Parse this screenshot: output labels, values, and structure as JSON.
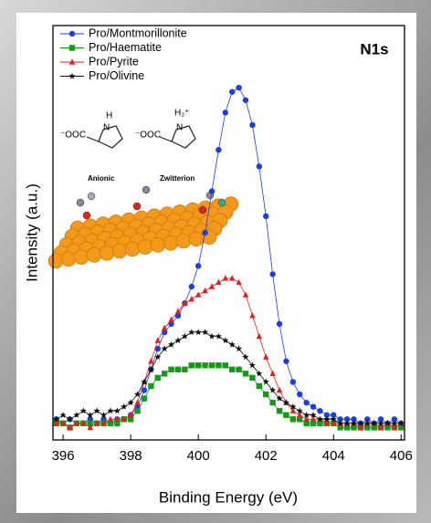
{
  "chart_data": {
    "type": "line",
    "annotation": "N1s",
    "x_label": "Binding Energy (eV)",
    "y_label": "Intensity (a.u.)",
    "xlim": [
      395.7,
      406.1
    ],
    "ylim": [
      0,
      100
    ],
    "xticks": [
      396,
      398,
      400,
      402,
      404,
      406
    ],
    "legend": "top-left",
    "x": [
      395.8,
      396.0,
      396.2,
      396.4,
      396.6,
      396.8,
      397.0,
      397.2,
      397.4,
      397.6,
      397.8,
      398.0,
      398.2,
      398.4,
      398.6,
      398.8,
      399.0,
      399.2,
      399.4,
      399.6,
      399.8,
      400.0,
      400.2,
      400.4,
      400.6,
      400.8,
      401.0,
      401.2,
      401.4,
      401.6,
      401.8,
      402.0,
      402.2,
      402.4,
      402.6,
      402.8,
      403.0,
      403.2,
      403.4,
      403.6,
      403.8,
      404.0,
      404.2,
      404.4,
      404.6,
      404.8,
      405.0,
      405.2,
      405.4,
      405.6,
      405.8,
      406.0
    ],
    "series": [
      {
        "name": "Pro/Montmorillonite",
        "color": "#1a3ee0",
        "marker": "circle",
        "values": [
          5,
          4,
          5,
          4,
          4,
          5,
          4,
          5,
          4,
          5,
          5,
          6,
          8,
          12,
          17,
          22,
          26,
          28,
          30,
          33,
          37,
          42,
          50,
          60,
          70,
          79,
          84,
          85,
          82,
          76,
          66,
          54,
          40,
          28,
          19,
          14,
          11,
          9,
          8,
          7,
          6,
          6,
          5,
          5,
          5,
          4,
          5,
          4,
          5,
          4,
          5,
          4
        ]
      },
      {
        "name": "Pro/Haematite",
        "color": "#139a17",
        "marker": "square",
        "values": [
          4,
          4,
          3,
          4,
          4,
          4,
          4,
          4,
          4,
          4,
          5,
          5,
          7,
          10,
          13,
          15,
          16,
          17,
          17,
          17,
          18,
          18,
          18,
          18,
          18,
          18,
          17,
          17,
          16,
          15,
          13,
          11,
          9,
          7,
          6,
          5,
          5,
          4,
          4,
          4,
          4,
          4,
          3,
          3,
          3,
          3,
          3,
          3,
          3,
          3,
          3,
          3
        ]
      },
      {
        "name": "Pro/Pyrite",
        "color": "#e0211d",
        "marker": "triangle",
        "values": [
          4,
          4,
          3,
          4,
          4,
          3,
          4,
          4,
          5,
          5,
          5,
          6,
          9,
          14,
          19,
          24,
          27,
          29,
          31,
          33,
          34,
          35,
          36,
          37,
          38,
          39,
          39,
          38,
          35,
          30,
          25,
          20,
          16,
          12,
          9,
          7,
          6,
          5,
          5,
          5,
          4,
          4,
          4,
          4,
          4,
          3,
          4,
          4,
          3,
          4,
          3,
          4
        ]
      },
      {
        "name": "Pro/Olivine",
        "color": "#111111",
        "marker": "star",
        "values": [
          5,
          6,
          5,
          6,
          7,
          6,
          7,
          6,
          7,
          7,
          8,
          9,
          11,
          14,
          17,
          20,
          22,
          23,
          24,
          25,
          26,
          26,
          26,
          25,
          25,
          24,
          23,
          22,
          20,
          18,
          16,
          14,
          12,
          10,
          9,
          8,
          7,
          6,
          6,
          5,
          5,
          5,
          4,
          4,
          4,
          4,
          4,
          4,
          4,
          4,
          4,
          4
        ]
      }
    ],
    "inset": {
      "anion_group": "⁻OOC",
      "anion_nh": "H",
      "anion_n": "N",
      "anion_label": "Anionic",
      "zwitterion_group": "⁻OOC",
      "zwitterion_nh": "H₂⁺",
      "zwitterion_n": "N",
      "zwitterion_label": "Zwitterion"
    }
  }
}
